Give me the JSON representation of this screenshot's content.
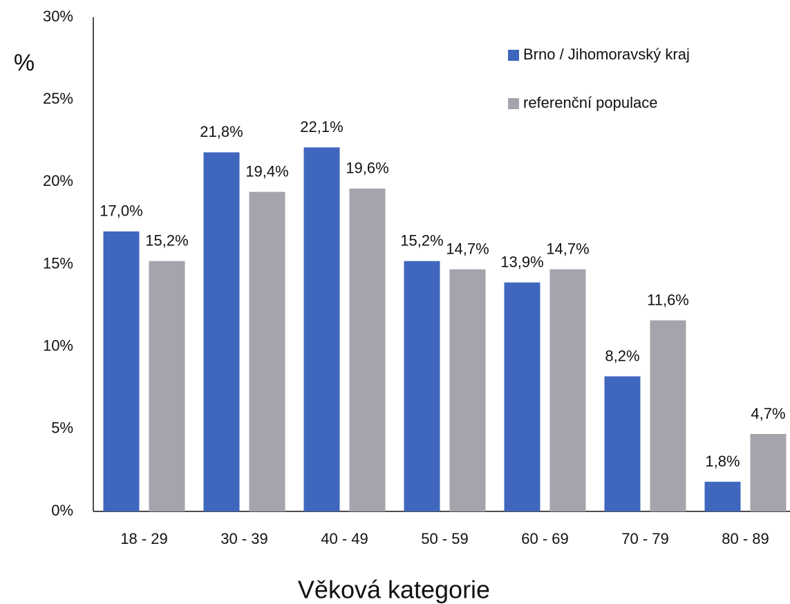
{
  "chart_data": {
    "type": "bar",
    "x_label": "Věková kategorie",
    "y_label": "%",
    "categories": [
      "18 - 29",
      "30 - 39",
      "40 - 49",
      "50 - 59",
      "60 - 69",
      "70 - 79",
      "80 - 89"
    ],
    "series": [
      {
        "name": "Brno / Jihomoravský kraj",
        "color": "#3f67bd",
        "values": [
          17.0,
          21.8,
          22.1,
          15.2,
          13.9,
          8.2,
          1.8
        ],
        "value_labels": [
          "17,0%",
          "21,8%",
          "22,1%",
          "15,2%",
          "13,9%",
          "8,2%",
          "1,8%"
        ]
      },
      {
        "name": "referenční populace",
        "color": "#a6a3ad",
        "values": [
          15.2,
          19.4,
          19.6,
          14.7,
          14.7,
          11.6,
          4.7
        ],
        "value_labels": [
          "15,2%",
          "19,4%",
          "19,6%",
          "14,7%",
          "14,7%",
          "11,6%",
          "4,7%"
        ]
      }
    ],
    "ylim": [
      0,
      30
    ],
    "yticks": [
      {
        "value": 0,
        "label": "0%"
      },
      {
        "value": 5,
        "label": "5%"
      },
      {
        "value": 10,
        "label": "10%"
      },
      {
        "value": 15,
        "label": "15%"
      },
      {
        "value": 20,
        "label": "20%"
      },
      {
        "value": 25,
        "label": "25%"
      },
      {
        "value": 30,
        "label": "30%"
      }
    ],
    "grid": false,
    "legend": "top-right"
  }
}
